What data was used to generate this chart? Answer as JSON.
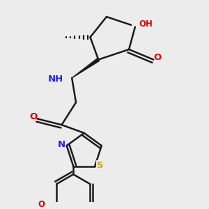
{
  "bg_color": "#ececec",
  "bond_color": "#1a1a1a",
  "bond_width": 1.8,
  "atom_colors": {
    "N": "#2020ff",
    "O": "#dd0000",
    "S": "#ccaa00",
    "C": "#1a1a1a"
  },
  "font_size": 8.5,
  "fig_size": [
    3.0,
    3.0
  ],
  "dpi": 100
}
